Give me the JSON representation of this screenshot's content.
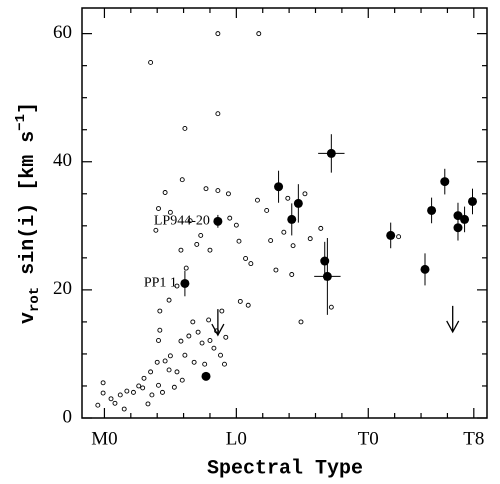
{
  "chart_data": {
    "type": "scatter",
    "xlabel": "Spectral Type",
    "ylabel": {
      "v": "v",
      "sub": "rot",
      "mid": " sin(i) [km s",
      "sup": "−1",
      "end": "]"
    },
    "xlim": [
      -1.7,
      29
    ],
    "ylim": [
      0,
      64
    ],
    "xticks": [
      {
        "value": 0,
        "label": "M0"
      },
      {
        "value": 10,
        "label": "L0"
      },
      {
        "value": 20,
        "label": "T0"
      },
      {
        "value": 28,
        "label": "T8"
      }
    ],
    "xminorticks": [
      2,
      4,
      6,
      8,
      12,
      14,
      16,
      18,
      22,
      24,
      26
    ],
    "yticks": [
      0,
      20,
      40,
      60
    ],
    "yminorticks": [
      5,
      10,
      15,
      25,
      30,
      35,
      45,
      50,
      55
    ],
    "open_points": {
      "x": [
        8.6,
        11.7,
        3.5,
        6.1,
        8.6,
        -0.1,
        -0.1,
        -0.5,
        0.5,
        0.8,
        1.2,
        1.5,
        1.7,
        2.2,
        2.6,
        2.9,
        3.0,
        3.3,
        3.5,
        3.6,
        4.0,
        4.1,
        4.1,
        4.2,
        4.4,
        4.6,
        4.9,
        5.0,
        5.3,
        5.5,
        5.8,
        5.9,
        6.1,
        6.4,
        6.7,
        6.8,
        7.1,
        7.4,
        7.6,
        7.9,
        8.0,
        8.3,
        8.5,
        8.8,
        9.1,
        4.2,
        4.9,
        5.5,
        6.2,
        7.0,
        3.9,
        4.1,
        5.0,
        5.8,
        6.5,
        7.3,
        8.0,
        9.4,
        9.5,
        10.0,
        10.2,
        10.3,
        10.9,
        10.7,
        11.1,
        11.6,
        12.3,
        12.6,
        13.0,
        13.6,
        13.9,
        14.3,
        14.2,
        14.9,
        15.2,
        15.6,
        16.4,
        17.2,
        22.3,
        4.6,
        5.9,
        7.7,
        8.6,
        9.2,
        8.9
      ],
      "y": [
        60.0,
        60.0,
        55.5,
        45.2,
        47.5,
        5.5,
        3.9,
        2.0,
        3.0,
        2.3,
        3.6,
        1.4,
        4.2,
        4.0,
        5.0,
        4.7,
        6.2,
        2.2,
        7.2,
        3.6,
        8.7,
        5.1,
        12.1,
        13.7,
        4.0,
        8.9,
        7.5,
        9.7,
        4.8,
        7.2,
        12.0,
        5.9,
        9.8,
        12.8,
        15.0,
        8.7,
        13.4,
        11.7,
        8.4,
        15.3,
        12.1,
        10.9,
        13.6,
        9.8,
        8.4,
        16.7,
        18.4,
        20.6,
        23.4,
        27.1,
        29.3,
        32.7,
        32.1,
        26.2,
        30.8,
        28.5,
        26.2,
        35.0,
        31.2,
        30.1,
        27.6,
        18.2,
        17.6,
        24.9,
        24.1,
        34.0,
        32.4,
        27.7,
        23.1,
        29.0,
        34.3,
        26.9,
        22.4,
        15.0,
        35.0,
        28.0,
        29.6,
        17.3,
        28.3,
        35.2,
        37.2,
        35.8,
        35.5,
        12.6,
        16.7
      ]
    },
    "filled_points": {
      "x": [
        7.7,
        6.1,
        8.6,
        13.2,
        14.2,
        14.7,
        17.2,
        16.7,
        16.9,
        21.7,
        24.3,
        24.8,
        25.8,
        26.8,
        26.8,
        27.3,
        27.9
      ],
      "y": [
        6.5,
        21.0,
        30.7,
        36.1,
        31.0,
        33.5,
        41.3,
        24.5,
        22.1,
        28.5,
        23.2,
        32.4,
        36.9,
        31.6,
        29.7,
        31.0,
        33.8
      ],
      "xerr": [
        null,
        null,
        null,
        null,
        null,
        null,
        1,
        null,
        1,
        null,
        null,
        null,
        null,
        null,
        null,
        null,
        null
      ],
      "yerr": [
        null,
        2,
        1,
        2.5,
        2.5,
        3,
        3,
        3,
        6,
        2,
        2.5,
        2,
        2,
        2,
        2,
        2,
        2
      ]
    },
    "upper_limits": {
      "x": [
        8.6,
        26.4
      ],
      "y": [
        17,
        17.5
      ]
    },
    "annotations": [
      "LP944-20",
      "PP1 1"
    ]
  }
}
